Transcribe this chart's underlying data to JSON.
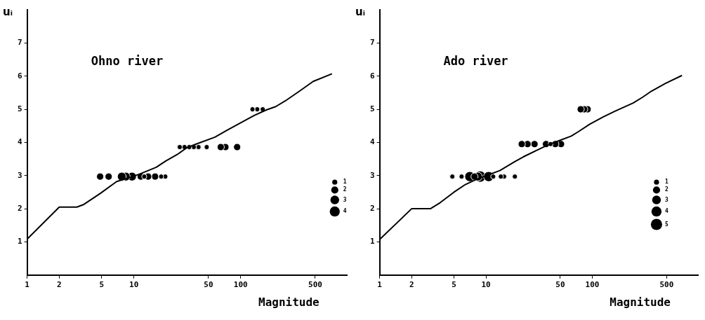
{
  "chart_data": [
    {
      "type": "line",
      "xlabel": "Magnitude",
      "ylabel": "uᵢ",
      "annotations": [
        "Ohno river"
      ],
      "log": "x",
      "xlim": [
        1,
        1000
      ],
      "xticks": [
        1,
        2,
        5,
        10,
        50,
        100,
        500
      ],
      "ylim": [
        0,
        8
      ],
      "yticks": [
        1,
        2,
        3,
        4,
        5,
        6,
        7
      ],
      "grid": false,
      "size_legend": [
        1,
        2,
        3,
        4
      ],
      "series": [
        {
          "type": "line",
          "color": "#000000",
          "marker": "none",
          "x": [
            1,
            2,
            2.92,
            3.4,
            4.83,
            6.9,
            9.3,
            11.4,
            16.2,
            19.9,
            25.6,
            31.3,
            38.3,
            57.4,
            73.8,
            100,
            135,
            174,
            213,
            261,
            353,
            478,
            717
          ],
          "values": [
            1.08,
            2.05,
            2.05,
            2.13,
            2.46,
            2.82,
            2.95,
            3.05,
            3.25,
            3.44,
            3.64,
            3.84,
            3.95,
            4.16,
            4.36,
            4.59,
            4.82,
            4.98,
            5.08,
            5.25,
            5.54,
            5.84,
            6.07
          ]
        },
        {
          "type": "bubble",
          "color": "#000000",
          "x": [
            4.83,
            5.8,
            7.7,
            8.4,
            9.6,
            11.6,
            12.5,
            13.6,
            15.8,
            18,
            19.7,
            26.9,
            29.8,
            33,
            36.4,
            40.3,
            48.1,
            65.1,
            72,
            92.7,
            129,
            143,
            161
          ],
          "values": [
            2.97,
            2.97,
            2.97,
            2.97,
            2.97,
            2.97,
            2.97,
            2.97,
            2.97,
            2.97,
            2.97,
            3.86,
            3.86,
            3.86,
            3.86,
            3.86,
            3.86,
            3.86,
            3.86,
            3.86,
            5,
            5,
            5
          ],
          "sizes": [
            2,
            2,
            3,
            3,
            3,
            2,
            1,
            2,
            2,
            1,
            1,
            1,
            1,
            1,
            1,
            1,
            1,
            2,
            2,
            2,
            1,
            1,
            1
          ]
        }
      ]
    },
    {
      "type": "line",
      "xlabel": "Magnitude",
      "ylabel": "uᵢ",
      "annotations": [
        "Ado river"
      ],
      "log": "x",
      "xlim": [
        1,
        1000
      ],
      "xticks": [
        1,
        2,
        5,
        10,
        50,
        100,
        500
      ],
      "ylim": [
        0,
        8
      ],
      "yticks": [
        1,
        2,
        3,
        4,
        5,
        6,
        7
      ],
      "grid": false,
      "size_legend": [
        1,
        2,
        3,
        4,
        5
      ],
      "series": [
        {
          "type": "line",
          "color": "#000000",
          "marker": "none",
          "x": [
            1,
            2,
            3,
            3.7,
            5,
            6.4,
            8.2,
            10.5,
            13.5,
            18.4,
            22.6,
            30.3,
            38.7,
            49.5,
            63.3,
            73.6,
            94.6,
            127,
            163,
            242,
            296,
            361,
            487,
            697
          ],
          "values": [
            1.07,
            2,
            2,
            2.18,
            2.5,
            2.73,
            2.89,
            3.02,
            3.15,
            3.41,
            3.57,
            3.77,
            3.93,
            4.06,
            4.19,
            4.32,
            4.55,
            4.77,
            4.94,
            5.19,
            5.36,
            5.55,
            5.78,
            6.02
          ]
        },
        {
          "type": "bubble",
          "color": "#000000",
          "x": [
            4.83,
            5.9,
            7.05,
            7.8,
            8.4,
            8.8,
            10.6,
            11.7,
            13.8,
            14.8,
            18.7,
            21.7,
            24.6,
            28.6,
            36.7,
            40.5,
            44.9,
            50.8,
            77.8,
            83.9,
            90.4
          ],
          "values": [
            2.97,
            2.97,
            2.97,
            2.97,
            2.97,
            2.97,
            2.97,
            2.97,
            2.97,
            2.97,
            2.97,
            3.95,
            3.95,
            3.95,
            3.95,
            3.95,
            3.95,
            3.95,
            5,
            5,
            5
          ],
          "sizes": [
            1,
            1,
            4,
            2,
            3,
            5,
            4,
            1,
            1,
            1,
            1,
            2,
            2,
            2,
            2,
            1,
            2,
            2,
            2,
            2,
            2
          ]
        }
      ]
    }
  ]
}
